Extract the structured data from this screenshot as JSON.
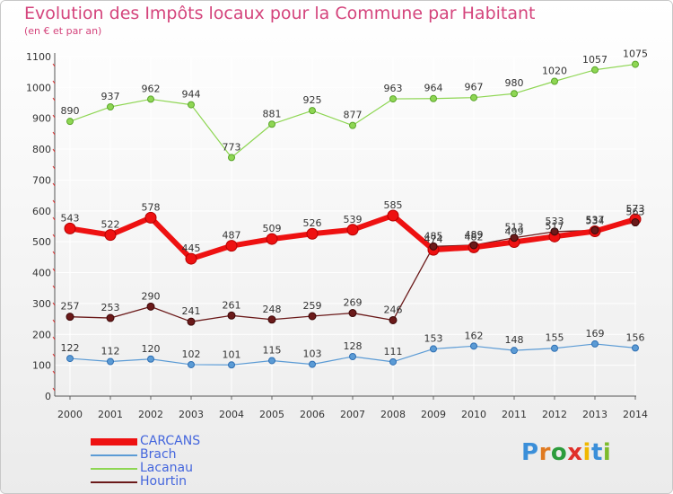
{
  "title": "Evolution des Impôts locaux pour la Commune par Habitant",
  "subtitle": "(en € et par an)",
  "logo": {
    "letters": [
      {
        "char": "P",
        "color": "#3b8fd9"
      },
      {
        "char": "r",
        "color": "#e07a20"
      },
      {
        "char": "o",
        "color": "#2c9c3c"
      },
      {
        "char": "x",
        "color": "#e0302a"
      },
      {
        "char": "i",
        "color": "#f0b800"
      },
      {
        "char": "t",
        "color": "#3b8fd9"
      },
      {
        "char": "i",
        "color": "#7dbb2c"
      }
    ]
  },
  "chart_data": {
    "type": "line",
    "x": [
      2000,
      2001,
      2002,
      2003,
      2004,
      2005,
      2006,
      2007,
      2008,
      2009,
      2010,
      2011,
      2012,
      2013,
      2014
    ],
    "ylim": [
      0,
      1100
    ],
    "yticks": [
      0,
      100,
      200,
      300,
      400,
      500,
      600,
      700,
      800,
      900,
      1000,
      1100
    ],
    "grid": true,
    "legend_position": "bottom-left",
    "series": [
      {
        "name": "CARCANS",
        "color": "#ee1111",
        "values": [
          543,
          522,
          578,
          445,
          487,
          509,
          526,
          539,
          585,
          474,
          482,
          499,
          517,
          534,
          573
        ]
      },
      {
        "name": "Brach",
        "color": "#5b9bd5",
        "values": [
          122,
          112,
          120,
          102,
          101,
          115,
          103,
          128,
          111,
          153,
          162,
          148,
          155,
          169,
          156
        ]
      },
      {
        "name": "Lacanau",
        "color": "#8ed653",
        "values": [
          890,
          937,
          962,
          944,
          773,
          881,
          925,
          877,
          963,
          964,
          967,
          980,
          1020,
          1057,
          1075
        ]
      },
      {
        "name": "Hourtin",
        "color": "#6b1a1a",
        "values": [
          257,
          253,
          290,
          241,
          261,
          248,
          259,
          269,
          246,
          485,
          489,
          513,
          533,
          537,
          563
        ]
      }
    ]
  }
}
